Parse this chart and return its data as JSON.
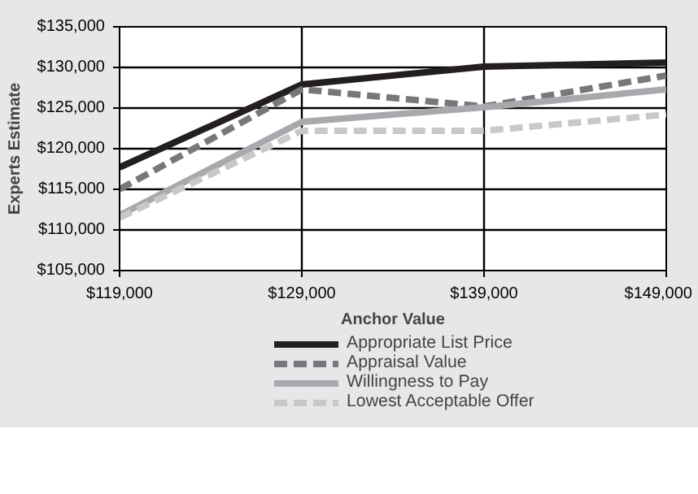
{
  "chart_data": {
    "type": "line",
    "xlabel": "Anchor Value",
    "ylabel": "Experts Estimate",
    "x": [
      119000,
      129000,
      139000,
      149000
    ],
    "series": [
      {
        "name": "Appropriate List Price",
        "color": "#231f20",
        "values": [
          117700,
          127900,
          130100,
          130600
        ],
        "line_style": "solid"
      },
      {
        "name": "Appraisal Value",
        "color": "#77787b",
        "values": [
          115000,
          127300,
          125200,
          129000
        ],
        "line_style": "dashed"
      },
      {
        "name": "Willingness to Pay",
        "color": "#a7a9ac",
        "values": [
          111800,
          123300,
          125100,
          127300
        ],
        "line_style": "solid"
      },
      {
        "name": "Lowest Acceptable Offer",
        "color": "#c7c8ca",
        "values": [
          111500,
          122200,
          122200,
          124200
        ],
        "line_style": "dashed"
      }
    ],
    "xlim": [
      119000,
      149000
    ],
    "ylim": [
      105000,
      135000
    ],
    "xticks": [
      {
        "value": 119000,
        "label": "$119,000"
      },
      {
        "value": 129000,
        "label": "$129,000"
      },
      {
        "value": 139000,
        "label": "$139,000"
      },
      {
        "value": 149000,
        "label": "$149,000"
      }
    ],
    "yticks": [
      {
        "value": 105000,
        "label": "$105,000"
      },
      {
        "value": 110000,
        "label": "$110,000"
      },
      {
        "value": 115000,
        "label": "$115,000"
      },
      {
        "value": 120000,
        "label": "$120,000"
      },
      {
        "value": 125000,
        "label": "$125,000"
      },
      {
        "value": 130000,
        "label": "$130,000"
      },
      {
        "value": 135000,
        "label": "$135,000"
      }
    ],
    "grid": true,
    "legend": "bottom",
    "marker": "none"
  }
}
